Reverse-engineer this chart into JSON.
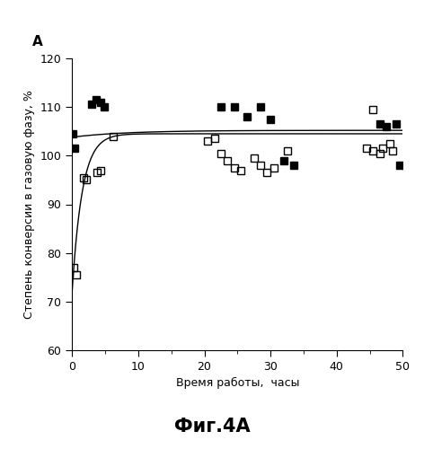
{
  "title_letter": "A",
  "xlabel": "Время работы,  часы",
  "ylabel": "Степень конверсии в газовую фазу, %",
  "caption": "Фиг.4A",
  "xlim": [
    0,
    50
  ],
  "ylim": [
    60,
    120
  ],
  "xticks": [
    0,
    10,
    20,
    30,
    40,
    50
  ],
  "yticks": [
    60,
    70,
    80,
    90,
    100,
    110,
    120
  ],
  "filled_squares": [
    [
      0.15,
      104.5
    ],
    [
      0.4,
      101.5
    ],
    [
      3.0,
      110.5
    ],
    [
      3.7,
      111.5
    ],
    [
      4.3,
      111.0
    ],
    [
      4.8,
      110.0
    ],
    [
      22.5,
      110.0
    ],
    [
      24.5,
      110.0
    ],
    [
      26.5,
      108.0
    ],
    [
      28.5,
      110.0
    ],
    [
      30.0,
      107.5
    ],
    [
      32.0,
      99.0
    ],
    [
      33.5,
      98.0
    ],
    [
      46.5,
      106.5
    ],
    [
      47.5,
      106.0
    ],
    [
      49.0,
      106.5
    ],
    [
      49.5,
      98.0
    ]
  ],
  "open_squares": [
    [
      0.3,
      77.0
    ],
    [
      0.6,
      75.5
    ],
    [
      1.8,
      95.5
    ],
    [
      2.2,
      95.0
    ],
    [
      3.8,
      96.5
    ],
    [
      4.3,
      97.0
    ],
    [
      6.2,
      104.0
    ],
    [
      20.5,
      103.0
    ],
    [
      21.5,
      103.5
    ],
    [
      22.5,
      100.5
    ],
    [
      23.5,
      99.0
    ],
    [
      24.5,
      97.5
    ],
    [
      25.5,
      97.0
    ],
    [
      27.5,
      99.5
    ],
    [
      28.5,
      98.0
    ],
    [
      29.5,
      96.5
    ],
    [
      30.5,
      97.5
    ],
    [
      32.5,
      101.0
    ],
    [
      44.5,
      101.5
    ],
    [
      45.5,
      101.0
    ],
    [
      46.5,
      100.5
    ],
    [
      47.0,
      101.5
    ],
    [
      48.0,
      102.5
    ],
    [
      48.5,
      101.0
    ],
    [
      45.5,
      109.5
    ]
  ],
  "line_color": "#000000",
  "filled_color": "#000000",
  "open_color": "#000000",
  "bg_color": "#ffffff",
  "marker_size": 6,
  "font_size_axis_label": 9,
  "font_size_tick": 9,
  "font_size_caption": 15,
  "font_size_letter": 11
}
